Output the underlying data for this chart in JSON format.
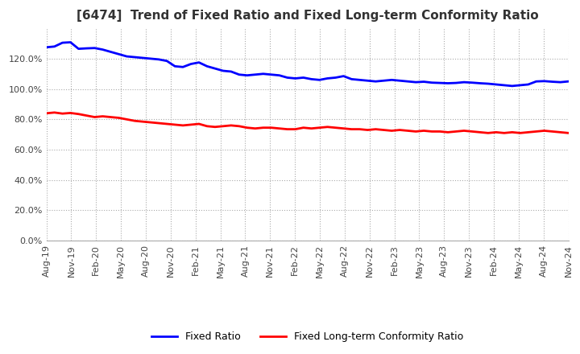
{
  "title": "[6474]  Trend of Fixed Ratio and Fixed Long-term Conformity Ratio",
  "fixed_ratio": [
    127.5,
    128.0,
    130.5,
    130.8,
    126.5,
    126.8,
    127.0,
    126.0,
    124.5,
    123.0,
    121.5,
    121.0,
    120.5,
    120.0,
    119.5,
    118.5,
    115.0,
    114.5,
    116.5,
    117.5,
    115.0,
    113.5,
    112.0,
    111.5,
    109.5,
    109.0,
    109.5,
    110.0,
    109.5,
    109.0,
    107.5,
    107.0,
    107.5,
    106.5,
    106.0,
    107.0,
    107.5,
    108.5,
    106.5,
    106.0,
    105.5,
    105.0,
    105.5,
    106.0,
    105.5,
    105.0,
    104.5,
    104.8,
    104.2,
    104.0,
    103.8,
    104.0,
    104.5,
    104.2,
    103.8,
    103.5,
    103.0,
    102.5,
    102.0,
    102.5,
    103.0,
    105.0,
    105.2,
    104.8,
    104.5,
    105.0
  ],
  "fixed_lt_ratio": [
    84.0,
    84.5,
    83.8,
    84.2,
    83.5,
    82.5,
    81.5,
    82.0,
    81.5,
    81.0,
    80.0,
    79.0,
    78.5,
    78.0,
    77.5,
    77.0,
    76.5,
    76.0,
    76.5,
    77.0,
    75.5,
    75.0,
    75.5,
    76.0,
    75.5,
    74.5,
    74.0,
    74.5,
    74.5,
    74.0,
    73.5,
    73.5,
    74.5,
    74.0,
    74.5,
    75.0,
    74.5,
    74.0,
    73.5,
    73.5,
    73.0,
    73.5,
    73.0,
    72.5,
    73.0,
    72.5,
    72.0,
    72.5,
    72.0,
    72.0,
    71.5,
    72.0,
    72.5,
    72.0,
    71.5,
    71.0,
    71.5,
    71.0,
    71.5,
    71.0,
    71.5,
    72.0,
    72.5,
    72.0,
    71.5,
    71.0
  ],
  "x_labels": [
    "Aug-19",
    "Nov-19",
    "Feb-20",
    "May-20",
    "Aug-20",
    "Nov-20",
    "Feb-21",
    "May-21",
    "Aug-21",
    "Nov-21",
    "Feb-22",
    "May-22",
    "Aug-22",
    "Nov-22",
    "Feb-23",
    "May-23",
    "Aug-23",
    "Nov-23",
    "Feb-24",
    "May-24",
    "Aug-24",
    "Nov-24"
  ],
  "line_color_fixed": "#0000FF",
  "line_color_lt": "#FF0000",
  "background_color": "#FFFFFF",
  "grid_color": "#AAAAAA",
  "ylim": [
    0,
    140
  ],
  "yticks": [
    0,
    20,
    40,
    60,
    80,
    100,
    120
  ],
  "legend_labels": [
    "Fixed Ratio",
    "Fixed Long-term Conformity Ratio"
  ]
}
